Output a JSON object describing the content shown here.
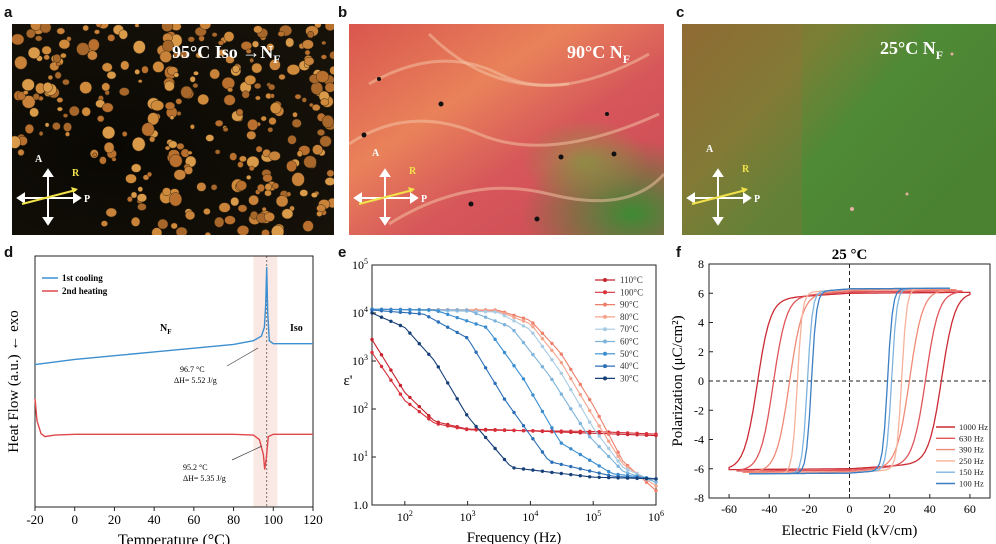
{
  "panels": {
    "a": {
      "letter": "a",
      "title": "95°C Iso →N",
      "title_sub": "F",
      "A": "A",
      "R": "R",
      "P": "P",
      "bg": "#0d0b05",
      "drop": "#c8823a"
    },
    "b": {
      "letter": "b",
      "title": "90°C N",
      "title_sub": "F",
      "A": "A",
      "R": "R",
      "P": "P",
      "bg": "#d2564e"
    },
    "c": {
      "letter": "c",
      "title": "25°C N",
      "title_sub": "F",
      "A": "A",
      "R": "R",
      "P": "P",
      "bg": "#5d7a34"
    }
  },
  "chart_data": [
    {
      "id": "d",
      "letter": "d",
      "type": "line",
      "xlabel": "Temperature (°C)",
      "ylabel": "Heat Flow (a.u.) ← exo",
      "xlim": [
        -20,
        120
      ],
      "xticks": [
        "-20",
        "0",
        "20",
        "40",
        "60",
        "80",
        "100",
        "120"
      ],
      "legend": [
        "1st cooling",
        "2nd heating"
      ],
      "colors": [
        "#3c8fd0",
        "#e0474c"
      ],
      "labels": {
        "nf": "N",
        "nf_sub": "F",
        "iso": "Iso"
      },
      "annotations": [
        {
          "temp": "96.7 °C",
          "dh": "ΔH= 5.52 J/g"
        },
        {
          "temp": "95.2 °C",
          "dh": "ΔH= 5.35 J/g"
        }
      ],
      "shade_range": [
        90,
        102
      ],
      "cooling": {
        "x": [
          -20,
          0,
          20,
          40,
          60,
          80,
          90,
          94,
          95.5,
          96.2,
          96.7,
          97.2,
          98,
          100,
          120
        ],
        "y": [
          0.3,
          0.37,
          0.42,
          0.47,
          0.52,
          0.57,
          0.62,
          0.68,
          0.8,
          1.1,
          1.6,
          1.0,
          0.62,
          0.58,
          0.58
        ]
      },
      "heating": {
        "x": [
          -20,
          -19,
          -17,
          -15,
          -10,
          0,
          20,
          40,
          60,
          80,
          90,
          93,
          95,
          95.7,
          96.5,
          97.5,
          100,
          120
        ],
        "y": [
          -0.15,
          -0.45,
          -0.62,
          -0.66,
          -0.64,
          -0.63,
          -0.63,
          -0.63,
          -0.63,
          -0.63,
          -0.64,
          -0.7,
          -0.9,
          -1.1,
          -0.95,
          -0.66,
          -0.63,
          -0.63
        ]
      }
    },
    {
      "id": "e",
      "letter": "e",
      "type": "line",
      "xscale": "log",
      "yscale": "log",
      "xlabel": "Frequency (Hz)",
      "ylabel": "ε'",
      "xlim": [
        30,
        1000000
      ],
      "ylim": [
        1,
        100000
      ],
      "xticks": [
        {
          "v": 100,
          "m": "10",
          "e": "2"
        },
        {
          "v": 1000,
          "m": "10",
          "e": "3"
        },
        {
          "v": 10000,
          "m": "10",
          "e": "4"
        },
        {
          "v": 100000,
          "m": "10",
          "e": "5"
        },
        {
          "v": 1000000,
          "m": "10",
          "e": "6"
        }
      ],
      "yticks": [
        {
          "v": 1,
          "m": "1.0",
          "e": ""
        },
        {
          "v": 10,
          "m": "10",
          "e": "1"
        },
        {
          "v": 100,
          "m": "10",
          "e": "2"
        },
        {
          "v": 1000,
          "m": "10",
          "e": "3"
        },
        {
          "v": 10000,
          "m": "10",
          "e": "4"
        },
        {
          "v": 100000,
          "m": "10",
          "e": "5"
        }
      ],
      "series": [
        {
          "name": "110°C",
          "color": "#c8232c",
          "x": [
            30,
            100,
            300,
            1000,
            3000,
            1000000
          ],
          "y": [
            2800,
            220,
            55,
            38,
            37,
            28
          ]
        },
        {
          "name": "100°C",
          "color": "#d7303a",
          "x": [
            30,
            100,
            300,
            1000,
            3000,
            100000,
            1000000
          ],
          "y": [
            1500,
            150,
            50,
            37,
            36,
            34,
            30
          ]
        },
        {
          "name": "90°C",
          "color": "#ee7f6a",
          "x": [
            30,
            3000,
            10000,
            30000,
            100000,
            300000,
            1000000
          ],
          "y": [
            12000,
            11500,
            7000,
            1500,
            120,
            8,
            2
          ]
        },
        {
          "name": "80°C",
          "color": "#f4a48c",
          "x": [
            30,
            3000,
            10000,
            30000,
            100000,
            300000,
            1000000
          ],
          "y": [
            12000,
            11000,
            6000,
            1000,
            70,
            7,
            2.5
          ]
        },
        {
          "name": "70°C",
          "color": "#a8cbe4",
          "x": [
            30,
            3000,
            10000,
            30000,
            100000,
            300000,
            1000000
          ],
          "y": [
            12000,
            10500,
            4500,
            600,
            40,
            6,
            3
          ]
        },
        {
          "name": "60°C",
          "color": "#7eb4dc",
          "x": [
            30,
            1000,
            5000,
            20000,
            80000,
            300000,
            1000000
          ],
          "y": [
            12000,
            11500,
            5000,
            500,
            30,
            5,
            3
          ]
        },
        {
          "name": "50°C",
          "color": "#3a8ed0",
          "x": [
            30,
            300,
            2000,
            8000,
            30000,
            200000,
            1000000
          ],
          "y": [
            12000,
            11500,
            5000,
            400,
            20,
            4.5,
            3.5
          ]
        },
        {
          "name": "40°C",
          "color": "#2c6fb7",
          "x": [
            30,
            200,
            1000,
            4000,
            20000,
            200000,
            1000000
          ],
          "y": [
            11500,
            9500,
            3000,
            150,
            8,
            4,
            3.5
          ]
        },
        {
          "name": "30°C",
          "color": "#173f78",
          "x": [
            30,
            100,
            300,
            1000,
            5000,
            100000,
            1000000
          ],
          "y": [
            10000,
            5000,
            1000,
            70,
            6,
            3.8,
            3.5
          ]
        }
      ]
    },
    {
      "id": "f",
      "letter": "f",
      "type": "line",
      "title": "25 °C",
      "xlabel": "Electric Field (kV/cm)",
      "ylabel": "Polarization (μC/cm²)",
      "xlim": [
        -70,
        70
      ],
      "ylim": [
        -8,
        8
      ],
      "xticks": [
        -60,
        -40,
        -20,
        0,
        20,
        40,
        60
      ],
      "yticks": [
        -8,
        -6,
        -4,
        -2,
        0,
        2,
        4,
        6,
        8
      ],
      "series": [
        {
          "name": "1000 Hz",
          "color": "#cc2a33",
          "emax": 60,
          "ec": 46,
          "ps": 6.0
        },
        {
          "name": "630 Hz",
          "color": "#e0545a",
          "emax": 56,
          "ec": 38,
          "ps": 6.1
        },
        {
          "name": "390 Hz",
          "color": "#f08a77",
          "emax": 53,
          "ec": 30,
          "ps": 6.2
        },
        {
          "name": "250 Hz",
          "color": "#f6b29a",
          "emax": 50,
          "ec": 26,
          "ps": 6.3
        },
        {
          "name": "150 Hz",
          "color": "#7fb3de",
          "emax": 50,
          "ec": 21,
          "ps": 6.3
        },
        {
          "name": "100 Hz",
          "color": "#3b7fc4",
          "emax": 50,
          "ec": 19,
          "ps": 6.3
        }
      ]
    }
  ]
}
